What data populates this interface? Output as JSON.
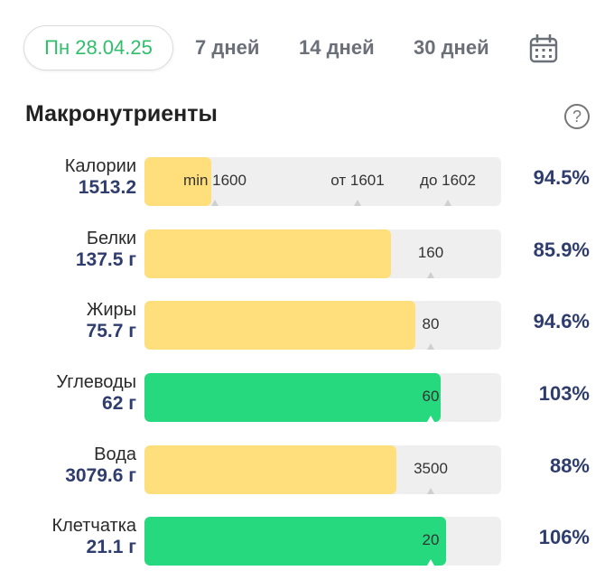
{
  "tabs": {
    "active": "Пн 28.04.25",
    "days7": "7 дней",
    "days14": "14 дней",
    "days30": "30 дней",
    "calendar_icon": "calendar-icon"
  },
  "section": {
    "title": "Макронутриенты",
    "help_icon": "help-icon",
    "help_glyph": "?"
  },
  "colors": {
    "accent_green": "#2fbf6b",
    "bar_yellow": "#ffdf7b",
    "bar_green": "#27d97e",
    "value_navy": "#2f3d6e"
  },
  "macros": [
    {
      "name": "Калории",
      "value": "1513.2",
      "percent": "94.5%",
      "fill_ratio": 0.945,
      "color": "yellow",
      "marks": [
        "min 1600",
        "от 1601",
        "до 1602"
      ]
    },
    {
      "name": "Белки",
      "value": "137.5 г",
      "percent": "85.9%",
      "fill_ratio": 0.859,
      "color": "yellow",
      "marks": [
        "160"
      ]
    },
    {
      "name": "Жиры",
      "value": "75.7 г",
      "percent": "94.6%",
      "fill_ratio": 0.946,
      "color": "yellow",
      "marks": [
        "80"
      ]
    },
    {
      "name": "Углеводы",
      "value": "62 г",
      "percent": "103%",
      "fill_ratio": 1.03,
      "color": "green",
      "marks": [
        "60"
      ]
    },
    {
      "name": "Вода",
      "value": "3079.6 г",
      "percent": "88%",
      "fill_ratio": 0.88,
      "color": "yellow",
      "marks": [
        "3500"
      ]
    },
    {
      "name": "Клетчатка",
      "value": "21.1 г",
      "percent": "106%",
      "fill_ratio": 1.06,
      "color": "green",
      "marks": [
        "20"
      ]
    }
  ]
}
